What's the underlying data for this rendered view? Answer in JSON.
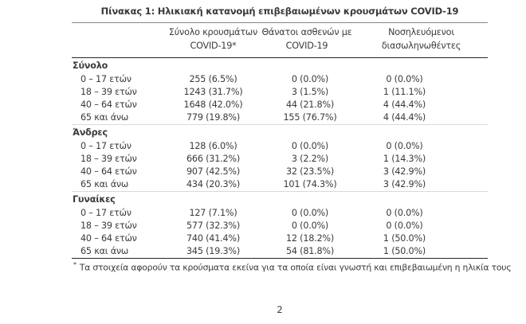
{
  "document": {
    "title": "Πίνακας 1: Ηλικιακή κατανομή επιβεβαιωμένων κρουσμάτων COVID-19",
    "page_number": "2",
    "footnote": {
      "marker": "*",
      "text": "Τα στοιχεία αφορούν τα κρούσματα εκείνα για τα οποία είναι γνωστή και επιβεβαιωμένη η ηλικία τους"
    }
  },
  "table": {
    "col_headers": [
      "Σύνολο κρουσμάτων\nCOVID-19*",
      "Θάνατοι ασθενών με\nCOVID-19",
      "Νοσηλευόμενοι\nδιασωληνωθέντες"
    ],
    "sections": [
      {
        "label": "Σύνολο",
        "rows": [
          {
            "age": "0 – 17 ετών",
            "cases": "255 (6.5%)",
            "deaths": "0 (0.0%)",
            "intubated": "0 (0.0%)"
          },
          {
            "age": "18 – 39 ετών",
            "cases": "1243 (31.7%)",
            "deaths": "3 (1.5%)",
            "intubated": "1 (11.1%)"
          },
          {
            "age": "40 – 64 ετών",
            "cases": "1648 (42.0%)",
            "deaths": "44 (21.8%)",
            "intubated": "4 (44.4%)"
          },
          {
            "age": "65 και άνω",
            "cases": "779 (19.8%)",
            "deaths": "155 (76.7%)",
            "intubated": "4 (44.4%)"
          }
        ]
      },
      {
        "label": "Άνδρες",
        "rows": [
          {
            "age": "0 – 17 ετών",
            "cases": "128 (6.0%)",
            "deaths": "0 (0.0%)",
            "intubated": "0 (0.0%)"
          },
          {
            "age": "18 – 39 ετών",
            "cases": "666 (31.2%)",
            "deaths": "3 (2.2%)",
            "intubated": "1 (14.3%)"
          },
          {
            "age": "40 – 64 ετών",
            "cases": "907 (42.5%)",
            "deaths": "32 (23.5%)",
            "intubated": "3 (42.9%)"
          },
          {
            "age": "65 και άνω",
            "cases": "434 (20.3%)",
            "deaths": "101 (74.3%)",
            "intubated": "3 (42.9%)"
          }
        ]
      },
      {
        "label": "Γυναίκες",
        "rows": [
          {
            "age": "0 – 17 ετών",
            "cases": "127 (7.1%)",
            "deaths": "0 (0.0%)",
            "intubated": "0 (0.0%)"
          },
          {
            "age": "18 – 39 ετών",
            "cases": "577 (32.3%)",
            "deaths": "0 (0.0%)",
            "intubated": "0 (0.0%)"
          },
          {
            "age": "40 – 64 ετών",
            "cases": "740 (41.4%)",
            "deaths": "12 (18.2%)",
            "intubated": "1 (50.0%)"
          },
          {
            "age": "65 και άνω",
            "cases": "345 (19.3%)",
            "deaths": "54 (81.8%)",
            "intubated": "1 (50.0%)"
          }
        ]
      }
    ]
  },
  "colors": {
    "text": "#3a3a3a",
    "rule_dark": "#262626",
    "rule_gray": "#878787",
    "section_separator": "#dadada",
    "background": "#ffffff"
  }
}
